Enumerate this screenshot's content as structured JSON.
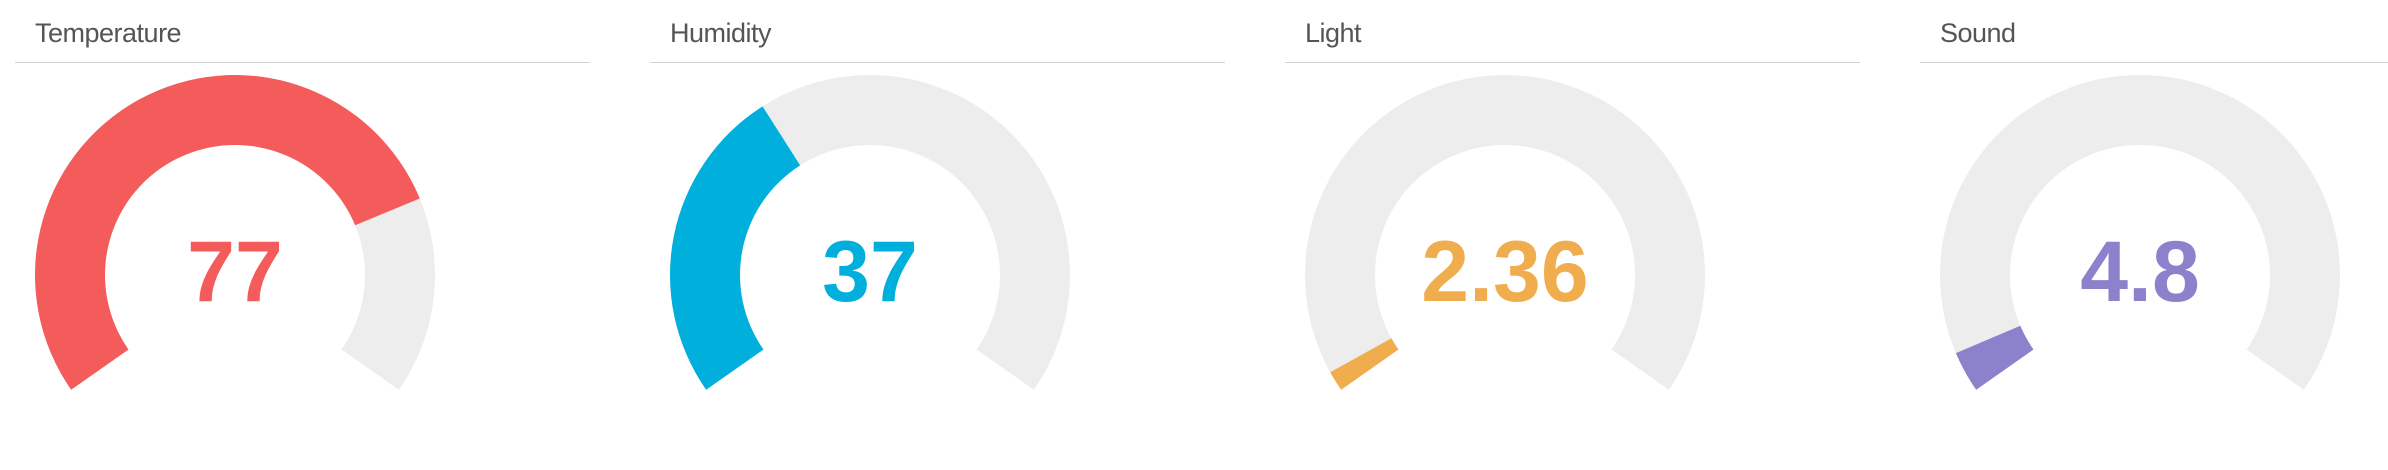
{
  "gauge_min": 0,
  "gauge_max": 100,
  "track_color": "#ededed",
  "panels": [
    {
      "title": "Temperature",
      "value": 77,
      "display": "77",
      "color": "#f45b5b"
    },
    {
      "title": "Humidity",
      "value": 37,
      "display": "37",
      "color": "#00afdb"
    },
    {
      "title": "Light",
      "value": 2.36,
      "display": "2.36",
      "color": "#f0ad4e"
    },
    {
      "title": "Sound",
      "value": 4.8,
      "display": "4.8",
      "color": "#8c82cc"
    }
  ]
}
